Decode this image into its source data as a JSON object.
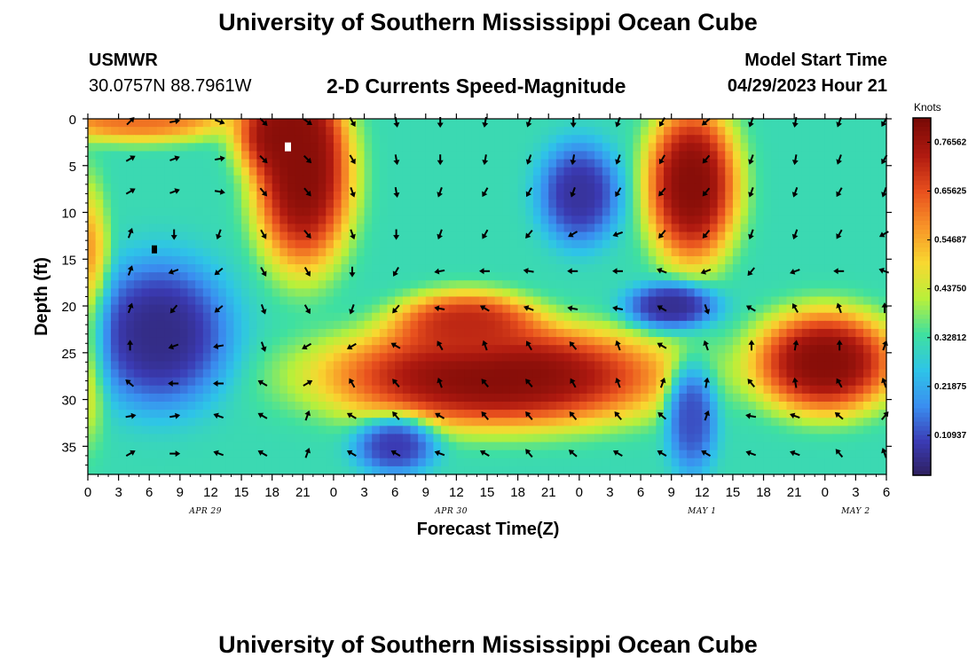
{
  "page": {
    "title": "University of Southern Mississippi Ocean Cube",
    "station": "USMWR",
    "location": "30.0757N  88.7961W",
    "subtitle": "2-D Currents Speed-Magnitude",
    "model_start_label": "Model Start Time",
    "model_start_value": "04/29/2023 Hour 21",
    "bottom_title": "University of Southern Mississippi Ocean Cube"
  },
  "colors": {
    "palette": [
      "#2d1e5a",
      "#3b3bb4",
      "#3a8ef0",
      "#2ec4e8",
      "#3fe0a0",
      "#b8f03a",
      "#f8d830",
      "#f89428",
      "#e8501e",
      "#b01a10",
      "#7a0a06"
    ]
  },
  "chart_data": {
    "type": "heatmap",
    "title": "2-D Currents Speed-Magnitude",
    "xlabel": "Forecast Time(Z)",
    "ylabel": "Depth (ft)",
    "ylim": [
      0,
      38
    ],
    "y_reversed": true,
    "xlim": [
      0,
      78
    ],
    "x_ticks": [
      0,
      3,
      6,
      9,
      12,
      15,
      18,
      21,
      24,
      27,
      30,
      33,
      36,
      39,
      42,
      45,
      48,
      51,
      54,
      57,
      60,
      63,
      66,
      69,
      72,
      75,
      78
    ],
    "x_tick_labels": [
      "0",
      "3",
      "6",
      "9",
      "12",
      "15",
      "18",
      "21",
      "0",
      "3",
      "6",
      "9",
      "12",
      "15",
      "18",
      "21",
      "0",
      "3",
      "6",
      "9",
      "12",
      "15",
      "18",
      "21",
      "0",
      "3",
      "6"
    ],
    "y_ticks": [
      0,
      5,
      10,
      15,
      20,
      25,
      30,
      35
    ],
    "y_tick_labels": [
      "0",
      "5",
      "10",
      "15",
      "20",
      "25",
      "30",
      "35"
    ],
    "date_labels": [
      {
        "text": "APR 29",
        "hour": 11.5
      },
      {
        "text": "APR 30",
        "hour": 35.5
      },
      {
        "text": "MAY 1",
        "hour": 60
      },
      {
        "text": "MAY 2",
        "hour": 75
      }
    ],
    "colorbar": {
      "title": "Knots",
      "ticks": [
        0.10937,
        0.21875,
        0.32812,
        0.4375,
        0.54687,
        0.65625,
        0.76562
      ],
      "tick_labels": [
        "0.10937",
        "0.21875",
        "0.32812",
        "0.43750",
        "0.54687",
        "0.65625",
        "0.76562"
      ],
      "min": 0.02,
      "max": 0.82
    },
    "speed_features": [
      {
        "desc": "high surface core",
        "hour": 21,
        "depth": 6,
        "hw": 4.8,
        "hd": 10,
        "speed": 0.8
      },
      {
        "desc": "high upper core",
        "hour": 19,
        "depth": 1,
        "hw": 4.5,
        "hd": 5,
        "speed": 0.8
      },
      {
        "desc": "high lower-left",
        "hour": 40,
        "depth": 27.5,
        "hw": 17,
        "hd": 5.5,
        "speed": 0.8
      },
      {
        "desc": "high mid bump",
        "hour": 37,
        "depth": 22,
        "hw": 7,
        "hd": 3.5,
        "speed": 0.72
      },
      {
        "desc": "high right surface",
        "hour": 59,
        "depth": 7,
        "hw": 4.5,
        "hd": 8.5,
        "speed": 0.8
      },
      {
        "desc": "high right bottom",
        "hour": 72,
        "depth": 26,
        "hw": 7,
        "hd": 5.5,
        "speed": 0.8
      },
      {
        "desc": "high left edge",
        "hour": 0,
        "depth": 20,
        "hw": 2.2,
        "hd": 12,
        "speed": 0.62
      },
      {
        "desc": "high top-left",
        "hour": 5,
        "depth": 0,
        "hw": 9,
        "hd": 2.5,
        "speed": 0.62
      },
      {
        "desc": "low left core",
        "hour": 7,
        "depth": 23,
        "hw": 7,
        "hd": 8,
        "speed": 0.06
      },
      {
        "desc": "low mid core",
        "hour": 48,
        "depth": 8,
        "hw": 4,
        "hd": 5.5,
        "speed": 0.08
      },
      {
        "desc": "low right mid",
        "hour": 57,
        "depth": 20,
        "hw": 4.5,
        "hd": 2.5,
        "speed": 0.07
      },
      {
        "desc": "low bottom strip",
        "hour": 30,
        "depth": 35,
        "hw": 4,
        "hd": 3,
        "speed": 0.1
      },
      {
        "desc": "low right strip",
        "hour": 59,
        "depth": 32,
        "hw": 2.5,
        "hd": 6,
        "speed": 0.12
      }
    ],
    "background_speed": 0.32,
    "vector_grid": {
      "hours": [
        4.3,
        8.6,
        13,
        17.3,
        21.6,
        26,
        30.3,
        34.6,
        39,
        43.3,
        47.6,
        52,
        56.3,
        60.6,
        65,
        69.3,
        73.6,
        78
      ],
      "depths": [
        0,
        4,
        7.5,
        12,
        16,
        20,
        24,
        28,
        31.5,
        35.5
      ]
    },
    "vector_directions": [
      [
        45,
        80,
        110,
        135,
        125,
        150,
        170,
        180,
        190,
        200,
        180,
        200,
        210,
        230,
        200,
        190,
        200,
        210
      ],
      [
        60,
        70,
        80,
        135,
        135,
        150,
        170,
        180,
        190,
        200,
        190,
        200,
        210,
        220,
        200,
        190,
        200,
        210
      ],
      [
        60,
        70,
        100,
        140,
        140,
        160,
        170,
        200,
        210,
        210,
        200,
        210,
        220,
        220,
        200,
        200,
        210,
        200
      ],
      [
        20,
        180,
        200,
        150,
        140,
        160,
        180,
        200,
        210,
        220,
        240,
        250,
        220,
        220,
        200,
        200,
        210,
        240
      ],
      [
        20,
        250,
        230,
        150,
        150,
        180,
        210,
        260,
        270,
        280,
        270,
        270,
        290,
        250,
        220,
        250,
        270,
        290
      ],
      [
        20,
        220,
        230,
        160,
        150,
        200,
        220,
        280,
        300,
        290,
        280,
        280,
        300,
        160,
        300,
        330,
        340,
        0
      ],
      [
        0,
        250,
        260,
        160,
        240,
        240,
        300,
        330,
        340,
        330,
        320,
        340,
        300,
        340,
        0,
        10,
        0,
        20
      ],
      [
        310,
        270,
        270,
        300,
        60,
        330,
        320,
        340,
        320,
        320,
        330,
        340,
        20,
        10,
        320,
        350,
        330,
        340
      ],
      [
        80,
        80,
        290,
        300,
        20,
        300,
        320,
        300,
        320,
        320,
        320,
        320,
        310,
        20,
        280,
        290,
        310,
        40
      ],
      [
        60,
        90,
        290,
        300,
        20,
        300,
        300,
        290,
        300,
        320,
        310,
        300,
        300,
        300,
        290,
        290,
        320,
        340
      ]
    ]
  }
}
